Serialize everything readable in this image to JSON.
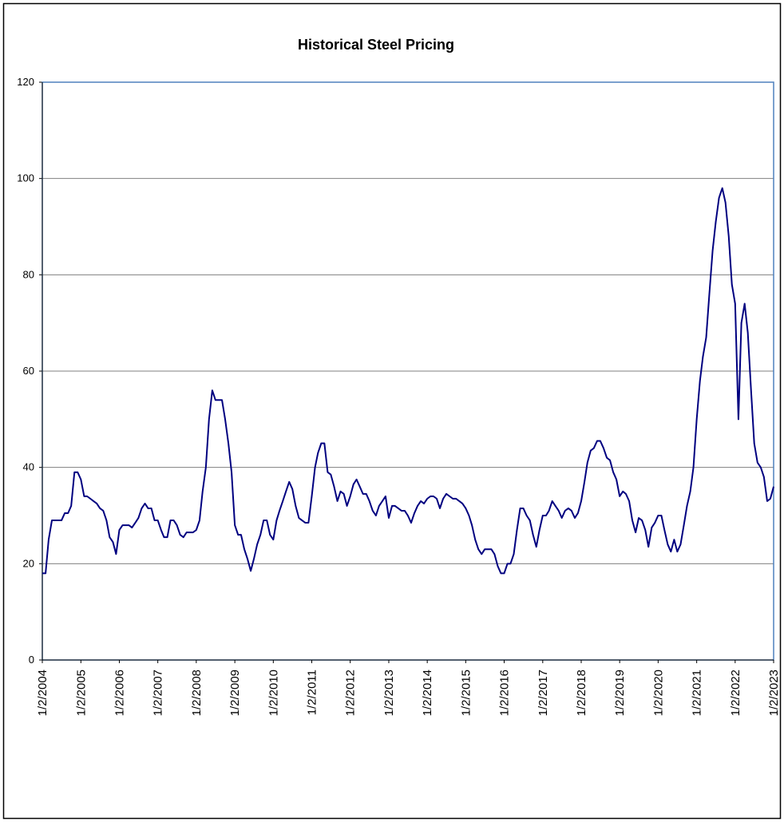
{
  "chart_data": {
    "type": "line",
    "title": "Historical Steel Pricing",
    "x": [
      "2004-01-02",
      "2004-02-02",
      "2004-03-02",
      "2004-04-02",
      "2004-05-02",
      "2004-06-02",
      "2004-07-02",
      "2004-08-02",
      "2004-09-02",
      "2004-10-02",
      "2004-11-02",
      "2004-12-02",
      "2005-01-02",
      "2005-02-02",
      "2005-03-02",
      "2005-04-02",
      "2005-05-02",
      "2005-06-02",
      "2005-07-02",
      "2005-08-02",
      "2005-09-02",
      "2005-10-02",
      "2005-11-02",
      "2005-12-02",
      "2006-01-02",
      "2006-02-02",
      "2006-03-02",
      "2006-04-02",
      "2006-05-02",
      "2006-06-02",
      "2006-07-02",
      "2006-08-02",
      "2006-09-02",
      "2006-10-02",
      "2006-11-02",
      "2006-12-02",
      "2007-01-02",
      "2007-02-02",
      "2007-03-02",
      "2007-04-02",
      "2007-05-02",
      "2007-06-02",
      "2007-07-02",
      "2007-08-02",
      "2007-09-02",
      "2007-10-02",
      "2007-11-02",
      "2007-12-02",
      "2008-01-02",
      "2008-02-02",
      "2008-03-02",
      "2008-04-02",
      "2008-05-02",
      "2008-06-02",
      "2008-07-02",
      "2008-08-02",
      "2008-09-02",
      "2008-10-02",
      "2008-11-02",
      "2008-12-02",
      "2009-01-02",
      "2009-02-02",
      "2009-03-02",
      "2009-04-02",
      "2009-05-02",
      "2009-06-02",
      "2009-07-02",
      "2009-08-02",
      "2009-09-02",
      "2009-10-02",
      "2009-11-02",
      "2009-12-02",
      "2010-01-02",
      "2010-02-02",
      "2010-03-02",
      "2010-04-02",
      "2010-05-02",
      "2010-06-02",
      "2010-07-02",
      "2010-08-02",
      "2010-09-02",
      "2010-10-02",
      "2010-11-02",
      "2010-12-02",
      "2011-01-02",
      "2011-02-02",
      "2011-03-02",
      "2011-04-02",
      "2011-05-02",
      "2011-06-02",
      "2011-07-02",
      "2011-08-02",
      "2011-09-02",
      "2011-10-02",
      "2011-11-02",
      "2011-12-02",
      "2012-01-02",
      "2012-02-02",
      "2012-03-02",
      "2012-04-02",
      "2012-05-02",
      "2012-06-02",
      "2012-07-02",
      "2012-08-02",
      "2012-09-02",
      "2012-10-02",
      "2012-11-02",
      "2012-12-02",
      "2013-01-02",
      "2013-02-02",
      "2013-03-02",
      "2013-04-02",
      "2013-05-02",
      "2013-06-02",
      "2013-07-02",
      "2013-08-02",
      "2013-09-02",
      "2013-10-02",
      "2013-11-02",
      "2013-12-02",
      "2014-01-02",
      "2014-02-02",
      "2014-03-02",
      "2014-04-02",
      "2014-05-02",
      "2014-06-02",
      "2014-07-02",
      "2014-08-02",
      "2014-09-02",
      "2014-10-02",
      "2014-11-02",
      "2014-12-02",
      "2015-01-02",
      "2015-02-02",
      "2015-03-02",
      "2015-04-02",
      "2015-05-02",
      "2015-06-02",
      "2015-07-02",
      "2015-08-02",
      "2015-09-02",
      "2015-10-02",
      "2015-11-02",
      "2015-12-02",
      "2016-01-02",
      "2016-02-02",
      "2016-03-02",
      "2016-04-02",
      "2016-05-02",
      "2016-06-02",
      "2016-07-02",
      "2016-08-02",
      "2016-09-02",
      "2016-10-02",
      "2016-11-02",
      "2016-12-02",
      "2017-01-02",
      "2017-02-02",
      "2017-03-02",
      "2017-04-02",
      "2017-05-02",
      "2017-06-02",
      "2017-07-02",
      "2017-08-02",
      "2017-09-02",
      "2017-10-02",
      "2017-11-02",
      "2017-12-02",
      "2018-01-02",
      "2018-02-02",
      "2018-03-02",
      "2018-04-02",
      "2018-05-02",
      "2018-06-02",
      "2018-07-02",
      "2018-08-02",
      "2018-09-02",
      "2018-10-02",
      "2018-11-02",
      "2018-12-02",
      "2019-01-02",
      "2019-02-02",
      "2019-03-02",
      "2019-04-02",
      "2019-05-02",
      "2019-06-02",
      "2019-07-02",
      "2019-08-02",
      "2019-09-02",
      "2019-10-02",
      "2019-11-02",
      "2019-12-02",
      "2020-01-02",
      "2020-02-02",
      "2020-03-02",
      "2020-04-02",
      "2020-05-02",
      "2020-06-02",
      "2020-07-02",
      "2020-08-02",
      "2020-09-02",
      "2020-10-02",
      "2020-11-02",
      "2020-12-02",
      "2021-01-02",
      "2021-02-02",
      "2021-03-02",
      "2021-04-02",
      "2021-05-02",
      "2021-06-02",
      "2021-07-02",
      "2021-08-02",
      "2021-09-02",
      "2021-10-02",
      "2021-11-02",
      "2021-12-02",
      "2022-01-02",
      "2022-02-02",
      "2022-03-02",
      "2022-04-02",
      "2022-05-02",
      "2022-06-02",
      "2022-07-02",
      "2022-08-02",
      "2022-09-02",
      "2022-10-02",
      "2022-11-02",
      "2022-12-02",
      "2023-01-02"
    ],
    "series": [
      {
        "color": "#000080",
        "values": [
          18,
          18,
          25,
          29,
          29,
          29,
          29,
          30.5,
          30.5,
          32,
          39,
          39,
          37.5,
          34,
          34,
          33.5,
          33,
          32.5,
          31.5,
          31,
          29,
          25.5,
          24.5,
          22,
          27,
          28,
          28,
          28,
          27.5,
          28.5,
          29.5,
          31.5,
          32.5,
          31.5,
          31.5,
          29,
          29,
          27,
          25.5,
          25.5,
          29,
          29,
          28,
          26,
          25.5,
          26.5,
          26.5,
          26.5,
          27,
          29,
          35,
          40,
          50,
          56,
          54,
          54,
          54,
          50,
          45,
          39,
          28,
          26,
          26,
          23,
          21,
          18.5,
          21,
          24,
          26,
          29,
          29,
          26,
          25,
          29,
          31,
          33,
          35,
          37,
          35.5,
          32,
          29.5,
          29,
          28.5,
          28.5,
          34,
          40,
          43,
          45,
          45,
          39,
          38.5,
          36,
          33,
          35,
          34.5,
          32,
          34,
          36.5,
          37.5,
          36,
          34.5,
          34.5,
          33,
          31,
          30,
          32,
          33,
          34,
          29.5,
          32,
          32,
          31.5,
          31,
          31,
          30,
          28.5,
          30.5,
          32,
          33,
          32.5,
          33.5,
          34,
          34,
          33.5,
          31.5,
          33.5,
          34.5,
          34,
          33.5,
          33.5,
          33,
          32.5,
          31.5,
          30,
          28,
          25,
          23,
          22,
          23,
          23,
          23,
          22,
          19.5,
          18,
          18,
          20,
          20,
          22,
          27,
          31.5,
          31.5,
          30,
          29,
          26,
          23.5,
          27,
          30,
          30,
          31,
          33,
          32,
          31,
          29.5,
          31,
          31.5,
          31,
          29.5,
          30.5,
          33,
          37,
          41,
          43.5,
          44,
          45.5,
          45.5,
          44,
          42,
          41.5,
          39,
          37.5,
          34,
          35,
          34.5,
          33,
          29,
          26.5,
          29.5,
          29,
          27,
          23.5,
          27.5,
          28.5,
          30,
          30,
          27,
          24,
          22.5,
          25,
          22.5,
          24,
          28,
          32,
          35,
          40,
          50,
          58,
          63,
          67,
          76,
          85,
          91,
          96,
          98,
          95,
          88,
          78,
          74,
          50,
          70,
          74,
          68,
          56,
          45,
          41,
          40,
          38,
          33,
          33.5,
          36
        ]
      }
    ],
    "xlim": [
      "2004-01-02",
      "2023-01-02"
    ],
    "xticks": [
      {
        "value": "2004-01-02",
        "label": "1/2/2004"
      },
      {
        "value": "2005-01-02",
        "label": "1/2/2005"
      },
      {
        "value": "2006-01-02",
        "label": "1/2/2006"
      },
      {
        "value": "2007-01-02",
        "label": "1/2/2007"
      },
      {
        "value": "2008-01-02",
        "label": "1/2/2008"
      },
      {
        "value": "2009-01-02",
        "label": "1/2/2009"
      },
      {
        "value": "2010-01-02",
        "label": "1/2/2010"
      },
      {
        "value": "2011-01-02",
        "label": "1/2/2011"
      },
      {
        "value": "2012-01-02",
        "label": "1/2/2012"
      },
      {
        "value": "2013-01-02",
        "label": "1/2/2013"
      },
      {
        "value": "2014-01-02",
        "label": "1/2/2014"
      },
      {
        "value": "2015-01-02",
        "label": "1/2/2015"
      },
      {
        "value": "2016-01-02",
        "label": "1/2/2016"
      },
      {
        "value": "2017-01-02",
        "label": "1/2/2017"
      },
      {
        "value": "2018-01-02",
        "label": "1/2/2018"
      },
      {
        "value": "2019-01-02",
        "label": "1/2/2019"
      },
      {
        "value": "2020-01-02",
        "label": "1/2/2020"
      },
      {
        "value": "2021-01-02",
        "label": "1/2/2021"
      },
      {
        "value": "2022-01-02",
        "label": "1/2/2022"
      },
      {
        "value": "2023-01-02",
        "label": "1/2/2023"
      }
    ],
    "ylim": [
      0,
      120
    ],
    "yticks": [
      0,
      20,
      40,
      60,
      80,
      100,
      120
    ],
    "grid": true
  }
}
